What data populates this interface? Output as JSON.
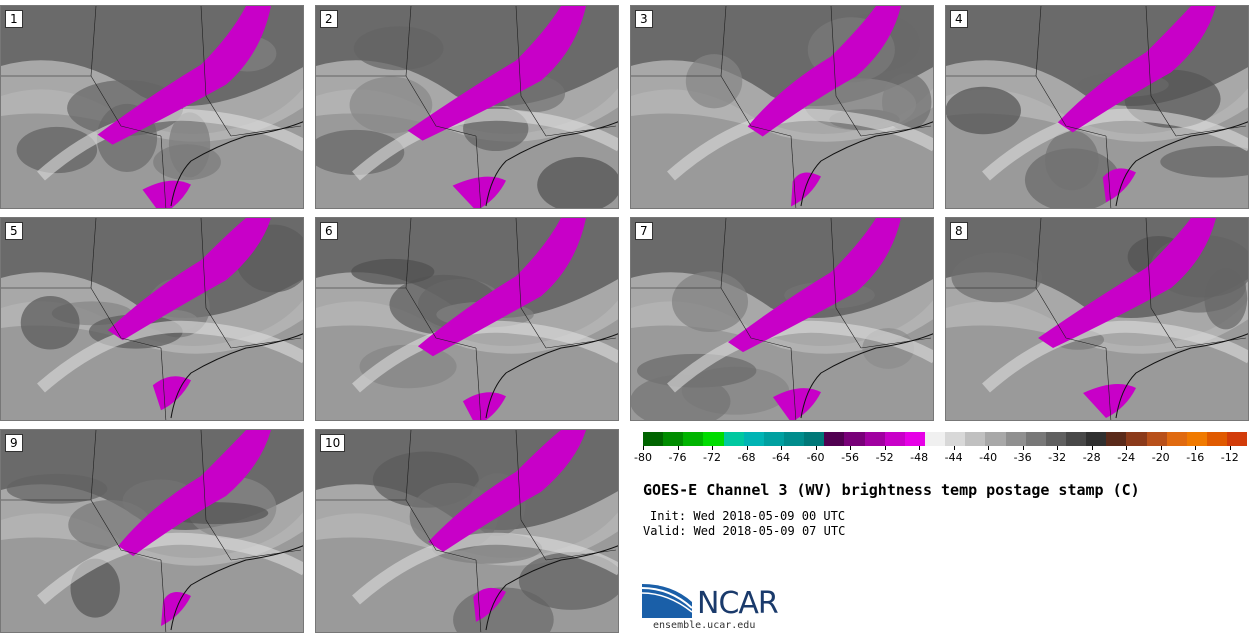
{
  "panels": [
    {
      "label": "1"
    },
    {
      "label": "2"
    },
    {
      "label": "3"
    },
    {
      "label": "4"
    },
    {
      "label": "5"
    },
    {
      "label": "6"
    },
    {
      "label": "7"
    },
    {
      "label": "8"
    },
    {
      "label": "9"
    },
    {
      "label": "10"
    }
  ],
  "colorbar": {
    "colors": [
      "#006400",
      "#008c00",
      "#00b400",
      "#00dc00",
      "#00c8a0",
      "#00b4b4",
      "#00a0a0",
      "#008c8c",
      "#007878",
      "#500050",
      "#780078",
      "#a000a0",
      "#c800c8",
      "#e600e6",
      "#f0f0f0",
      "#d8d8d8",
      "#c0c0c0",
      "#a8a8a8",
      "#909090",
      "#787878",
      "#606060",
      "#484848",
      "#303030",
      "#5a2a1a",
      "#8b3a1a",
      "#b8501a",
      "#e06a10",
      "#f07a00",
      "#e05a00",
      "#d23c0a"
    ],
    "tick_values": [
      "-80",
      "-76",
      "-72",
      "-68",
      "-64",
      "-60",
      "-56",
      "-52",
      "-48",
      "-44",
      "-40",
      "-36",
      "-32",
      "-28",
      "-24",
      "-20",
      "-16",
      "-12"
    ],
    "min": -80,
    "max": -10
  },
  "title": "GOES-E Channel 3 (WV) brightness temp postage stamp (C)",
  "init": "Init: Wed 2018-05-09 00 UTC",
  "valid": "Valid: Wed 2018-05-09 07 UTC",
  "logo_text": "NCAR",
  "site": "ensemble.ucar.edu"
}
